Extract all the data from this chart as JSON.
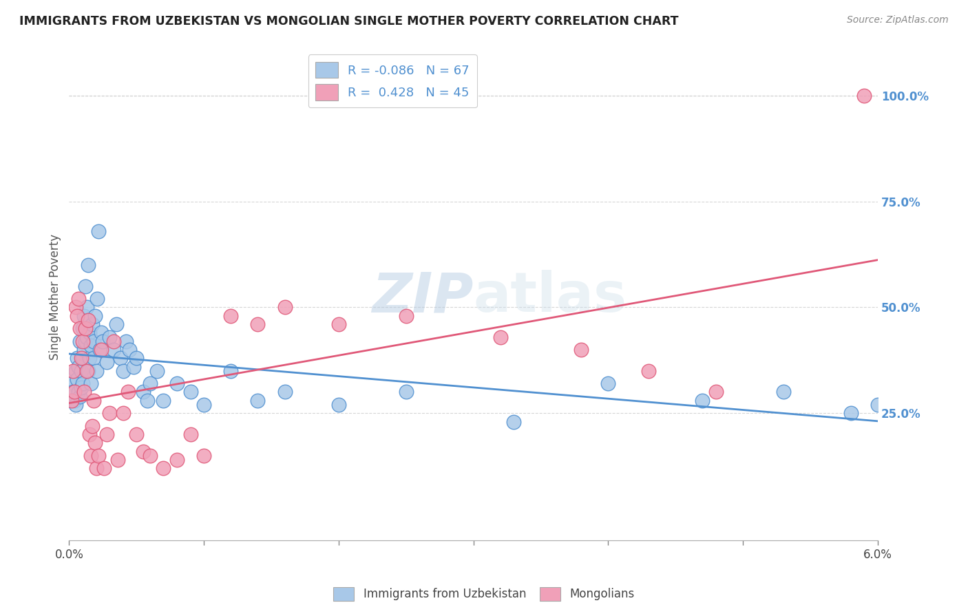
{
  "title": "IMMIGRANTS FROM UZBEKISTAN VS MONGOLIAN SINGLE MOTHER POVERTY CORRELATION CHART",
  "source": "Source: ZipAtlas.com",
  "ylabel": "Single Mother Poverty",
  "yticks_labels": [
    "100.0%",
    "75.0%",
    "50.0%",
    "25.0%"
  ],
  "ytick_vals": [
    1.0,
    0.75,
    0.5,
    0.25
  ],
  "xlim": [
    0.0,
    0.06
  ],
  "ylim": [
    -0.05,
    1.1
  ],
  "legend_label1": "Immigrants from Uzbekistan",
  "legend_label2": "Mongolians",
  "color_uzb": "#a8c8e8",
  "color_mon": "#f0a0b8",
  "color_uzb_line": "#5090d0",
  "color_mon_line": "#e05878",
  "watermark_zip": "ZIP",
  "watermark_atlas": "atlas",
  "uzb_x": [
    0.0002,
    0.0003,
    0.0004,
    0.0005,
    0.0005,
    0.0006,
    0.0006,
    0.0007,
    0.0007,
    0.0008,
    0.0008,
    0.0009,
    0.0009,
    0.001,
    0.001,
    0.001,
    0.0011,
    0.0011,
    0.0012,
    0.0012,
    0.0013,
    0.0013,
    0.0014,
    0.0014,
    0.0015,
    0.0015,
    0.0016,
    0.0016,
    0.0017,
    0.0018,
    0.0018,
    0.0019,
    0.002,
    0.0021,
    0.0022,
    0.0023,
    0.0024,
    0.0025,
    0.0028,
    0.003,
    0.0033,
    0.0035,
    0.0038,
    0.004,
    0.0042,
    0.0045,
    0.0048,
    0.005,
    0.0055,
    0.0058,
    0.006,
    0.0065,
    0.007,
    0.008,
    0.009,
    0.01,
    0.012,
    0.014,
    0.016,
    0.02,
    0.025,
    0.033,
    0.04,
    0.047,
    0.053,
    0.058,
    0.06
  ],
  "uzb_y": [
    0.32,
    0.3,
    0.28,
    0.27,
    0.35,
    0.33,
    0.38,
    0.3,
    0.36,
    0.29,
    0.42,
    0.35,
    0.31,
    0.45,
    0.38,
    0.32,
    0.48,
    0.4,
    0.55,
    0.42,
    0.43,
    0.5,
    0.6,
    0.35,
    0.44,
    0.38,
    0.41,
    0.32,
    0.46,
    0.42,
    0.38,
    0.48,
    0.35,
    0.52,
    0.68,
    0.4,
    0.44,
    0.42,
    0.37,
    0.43,
    0.4,
    0.46,
    0.38,
    0.35,
    0.42,
    0.4,
    0.36,
    0.38,
    0.3,
    0.28,
    0.32,
    0.35,
    0.28,
    0.32,
    0.3,
    0.27,
    0.35,
    0.28,
    0.3,
    0.27,
    0.3,
    0.23,
    0.32,
    0.28,
    0.3,
    0.25,
    0.27
  ],
  "mon_x": [
    0.0002,
    0.0003,
    0.0004,
    0.0005,
    0.0006,
    0.0007,
    0.0008,
    0.0009,
    0.001,
    0.0011,
    0.0012,
    0.0013,
    0.0014,
    0.0015,
    0.0016,
    0.0017,
    0.0018,
    0.0019,
    0.002,
    0.0022,
    0.0024,
    0.0026,
    0.0028,
    0.003,
    0.0033,
    0.0036,
    0.004,
    0.0044,
    0.005,
    0.0055,
    0.006,
    0.007,
    0.008,
    0.009,
    0.01,
    0.012,
    0.014,
    0.016,
    0.02,
    0.025,
    0.032,
    0.038,
    0.043,
    0.048,
    0.059
  ],
  "mon_y": [
    0.28,
    0.35,
    0.3,
    0.5,
    0.48,
    0.52,
    0.45,
    0.38,
    0.42,
    0.3,
    0.45,
    0.35,
    0.47,
    0.2,
    0.15,
    0.22,
    0.28,
    0.18,
    0.12,
    0.15,
    0.4,
    0.12,
    0.2,
    0.25,
    0.42,
    0.14,
    0.25,
    0.3,
    0.2,
    0.16,
    0.15,
    0.12,
    0.14,
    0.2,
    0.15,
    0.48,
    0.46,
    0.5,
    0.46,
    0.48,
    0.43,
    0.4,
    0.35,
    0.3,
    1.0
  ]
}
